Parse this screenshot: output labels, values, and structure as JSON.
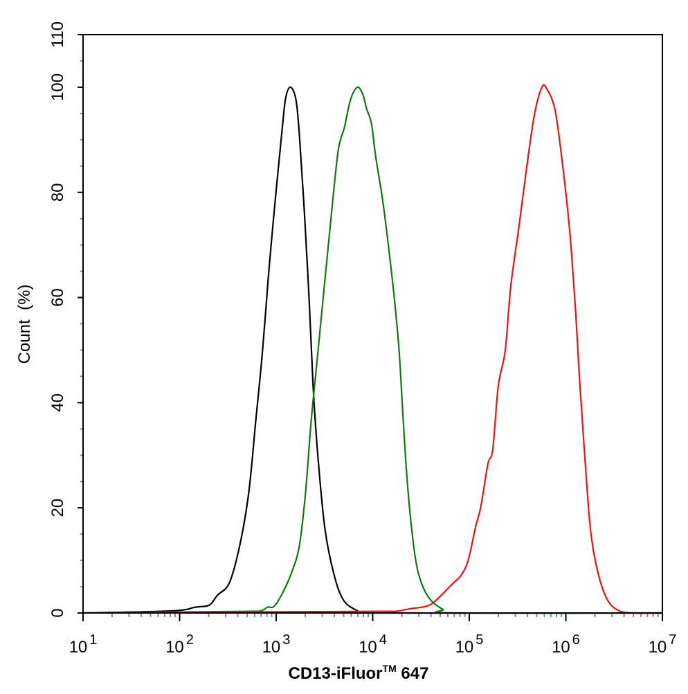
{
  "chart_data": {
    "type": "line",
    "title": "",
    "xlabel": "CD13-iFluor™ 647",
    "xlabel_main": "CD13-iFluor",
    "xlabel_tm": "TM",
    "xlabel_suffix": " 647",
    "ylabel": "Count  (%)",
    "x_scale": "log",
    "xlim": [
      10,
      10000000
    ],
    "ylim": [
      0,
      110
    ],
    "x_ticks": [
      {
        "base": "10",
        "exp": "1"
      },
      {
        "base": "10",
        "exp": "2"
      },
      {
        "base": "10",
        "exp": "3"
      },
      {
        "base": "10",
        "exp": "4"
      },
      {
        "base": "10",
        "exp": "5"
      },
      {
        "base": "10",
        "exp": "6"
      },
      {
        "base": "10",
        "exp": "7"
      }
    ],
    "y_ticks": [
      "0",
      "20",
      "40",
      "60",
      "80",
      "100",
      "110"
    ],
    "grid": false,
    "legend": "none",
    "series": [
      {
        "color": "#000000",
        "x": [
          10,
          84,
          146,
          203,
          247,
          327,
          419,
          520,
          614,
          723,
          826,
          958,
          1130,
          1248,
          1400,
          1600,
          1738,
          1950,
          2189,
          2416,
          2714,
          3201,
          3972,
          5000,
          6966,
          8630,
          10000000
        ],
        "y": [
          0,
          0.4,
          1.1,
          1.5,
          3.4,
          5.7,
          12.8,
          22.9,
          36.4,
          49.9,
          63.4,
          76.8,
          90.3,
          97.7,
          100,
          97.7,
          91,
          76.8,
          60,
          43,
          29.5,
          16,
          7.3,
          2.4,
          0.4,
          0,
          0
        ]
      },
      {
        "color": "#117711",
        "x": [
          10,
          441,
          689,
          812,
          958,
          1188,
          1473,
          1738,
          2015,
          2301,
          2714,
          3201,
          3776,
          4314,
          4686,
          5086,
          5902,
          6966,
          7946,
          8630,
          9688,
          10700,
          12410,
          13490,
          14890,
          16710,
          18750,
          20730,
          23270,
          27460,
          32390,
          40150,
          53200,
          70500,
          10000000
        ],
        "y": [
          0,
          0.3,
          0.4,
          1.1,
          1.3,
          4.1,
          8.1,
          12.8,
          22.9,
          36.4,
          49.9,
          63.4,
          76.8,
          87,
          90.3,
          92.3,
          97.7,
          100,
          98.5,
          95.9,
          93.1,
          87,
          79.6,
          74.8,
          68.2,
          60,
          49.9,
          36.4,
          22.9,
          10.8,
          5.4,
          2.4,
          0.7,
          0,
          0
        ]
      },
      {
        "color": "#ee1111",
        "x": [
          10,
          8220,
          16710,
          24430,
          36370,
          45100,
          65900,
          83200,
          98000,
          115600,
          132000,
          155600,
          174900,
          199600,
          235500,
          268800,
          327500,
          386300,
          471000,
          565000,
          634000,
          774000,
          928000,
          1095000,
          1271000,
          1403000,
          1575000,
          1798000,
          2121000,
          2673000,
          3483000,
          4853000,
          10000000
        ],
        "y": [
          0,
          0.3,
          0.3,
          0.8,
          1.3,
          2.4,
          5.4,
          7.3,
          10.2,
          16.2,
          20.3,
          28.3,
          31.1,
          43.2,
          49.9,
          62.1,
          73.6,
          83.7,
          94.6,
          100,
          99.7,
          95.6,
          85,
          72.8,
          56.5,
          43,
          29.5,
          16,
          8.1,
          2.6,
          0.5,
          0,
          0
        ]
      }
    ]
  }
}
